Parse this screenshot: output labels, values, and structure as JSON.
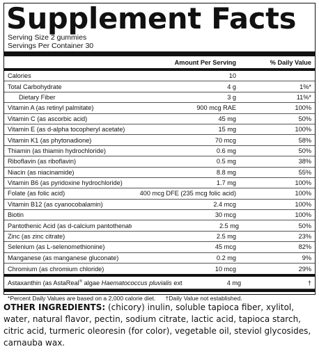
{
  "title": "Supplement Facts",
  "serving_size": "Serving Size 2 gummies",
  "servings_per_container": "Servings Per Container 30",
  "header": {
    "amount": "Amount Per Serving",
    "daily_value": "% Daily Value"
  },
  "rows": [
    {
      "name": "Calories",
      "amount": "10",
      "dv": ""
    },
    {
      "name": "Total Carbohydrate",
      "amount": "4 g",
      "dv": "1%*"
    },
    {
      "name": "Dietary Fiber",
      "amount": "3 g",
      "dv": "11%*"
    },
    {
      "name": "Vitamin A (as retinyl palmitate)",
      "amount": "900 mcg RAE",
      "dv": "100%"
    },
    {
      "name": "Vitamin C (as ascorbic acid)",
      "amount": "45 mg",
      "dv": "50%"
    },
    {
      "name": "Vitamin E (as d-alpha tocopheryl acetate)",
      "amount": "15 mg",
      "dv": "100%"
    },
    {
      "name": "Vitamin K1 (as phytonadione)",
      "amount": "70 mcg",
      "dv": "58%"
    },
    {
      "name": "Thiamin (as thiamin hydrochloride)",
      "amount": "0.6 mg",
      "dv": "50%"
    },
    {
      "name": "Riboflavin (as riboflavin)",
      "amount": "0.5 mg",
      "dv": "38%"
    },
    {
      "name": "Niacin (as niacinamide)",
      "amount": "8.8 mg",
      "dv": "55%"
    },
    {
      "name": "Vitamin B6 (as pyridoxine hydrochloride)",
      "amount": "1.7 mg",
      "dv": "100%"
    },
    {
      "name": "Folate (as folic acid)",
      "amount": "400 mcg DFE (235 mcg folic acid)",
      "dv": "100%"
    },
    {
      "name": "Vitamin B12 (as cyanocobalamin)",
      "amount": "2.4 mcg",
      "dv": "100%"
    },
    {
      "name": "Biotin",
      "amount": "30 mcg",
      "dv": "100%"
    },
    {
      "name": "Pantothenic Acid (as d-calcium pantothenate)",
      "amount": "2.5 mg",
      "dv": "50%"
    },
    {
      "name": "Zinc (as zinc citrate)",
      "amount": "2.5 mg",
      "dv": "23%"
    },
    {
      "name": "Selenium (as L-selenomethionine)",
      "amount": "45 mcg",
      "dv": "82%"
    },
    {
      "name": "Manganese (as manganese gluconate)",
      "amount": "0.2 mg",
      "dv": "9%"
    },
    {
      "name": "Chromium (as chromium chloride)",
      "amount": "10 mcg",
      "dv": "29%"
    }
  ],
  "astaxanthin": {
    "name_pre": "Astaxanthin (as AstaReal",
    "reg": "®",
    "name_mid": " algae ",
    "name_italic": "Haematococcus pluvialis",
    "name_post": " extract)",
    "amount": "4 mg",
    "dv": "†"
  },
  "footnote_1": "*Percent Daily Values are based on a 2,000 calorie diet.",
  "footnote_2": "†Daily Value not established.",
  "other_ingredients_label": "OTHER INGREDIENTS:",
  "other_ingredients_text": " (chicory) inulin, soluble tapioca fiber, xylitol, water, natural flavor, pectin, sodium citrate, lactic acid, tapioca starch, citric acid, turmeric oleoresin (for color), vegetable oil, steviol glycosides, carnauba wax."
}
